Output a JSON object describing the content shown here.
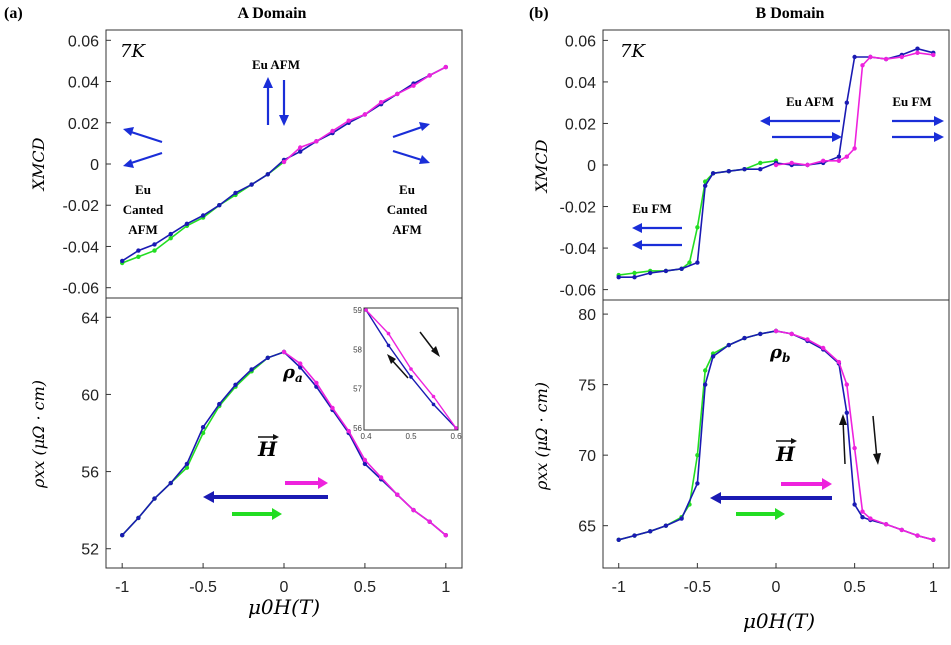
{
  "chart_data": [
    {
      "panel_label": "(a)",
      "title": "A Domain",
      "type": "line",
      "subplots": [
        {
          "id": "xmcd",
          "ylabel": "XMCD",
          "ylim": [
            -0.065,
            0.065
          ],
          "yticks": [
            "0.06",
            "0.04",
            "0.02",
            "0",
            "-0.02",
            "-0.04",
            "-0.06"
          ],
          "ytick_values": [
            0.06,
            0.04,
            0.02,
            0,
            -0.02,
            -0.04,
            -0.06
          ],
          "temperature": "7K",
          "series": [
            {
              "color": "#22dd22",
              "x": [
                -1.0,
                -0.9,
                -0.8,
                -0.7,
                -0.6,
                -0.5,
                -0.4,
                -0.3,
                -0.2,
                -0.1,
                0.0
              ],
              "values": [
                -0.048,
                -0.045,
                -0.042,
                -0.036,
                -0.03,
                -0.026,
                -0.02,
                -0.015,
                -0.01,
                -0.005,
                0.001
              ]
            },
            {
              "color": "#1a1ab3",
              "x": [
                -1.0,
                -0.9,
                -0.8,
                -0.7,
                -0.6,
                -0.5,
                -0.4,
                -0.3,
                -0.2,
                -0.1,
                0.0,
                0.1,
                0.2,
                0.3,
                0.4,
                0.5,
                0.6,
                0.7,
                0.8,
                0.9,
                1.0
              ],
              "values": [
                -0.047,
                -0.042,
                -0.039,
                -0.034,
                -0.029,
                -0.025,
                -0.02,
                -0.014,
                -0.01,
                -0.005,
                0.002,
                0.006,
                0.011,
                0.015,
                0.02,
                0.024,
                0.029,
                0.034,
                0.039,
                0.043,
                0.047
              ]
            },
            {
              "color": "#ee22dd",
              "x": [
                0.0,
                0.1,
                0.2,
                0.3,
                0.4,
                0.5,
                0.6,
                0.7,
                0.8,
                0.9,
                1.0
              ],
              "values": [
                0.001,
                0.008,
                0.011,
                0.016,
                0.021,
                0.024,
                0.03,
                0.034,
                0.038,
                0.043,
                0.047
              ]
            }
          ],
          "annotations": [
            "Eu AFM",
            "Eu Canted AFM",
            "Eu Canted AFM"
          ]
        },
        {
          "id": "rho",
          "ylabel": "ρxx (μΩ · cm)",
          "ylim": [
            51,
            65
          ],
          "yticks": [
            "64",
            "60",
            "56",
            "52"
          ],
          "ytick_values": [
            64,
            60,
            56,
            52
          ],
          "curve_label": "ρa",
          "field_label": "H",
          "series": [
            {
              "color": "#22dd22",
              "x": [
                -1.0,
                -0.9,
                -0.8,
                -0.7,
                -0.6,
                -0.5,
                -0.4,
                -0.3,
                -0.2,
                -0.1,
                0.0
              ],
              "values": [
                52.7,
                53.6,
                54.6,
                55.4,
                56.2,
                58.0,
                59.4,
                60.4,
                61.2,
                61.9,
                62.2
              ]
            },
            {
              "color": "#1a1ab3",
              "x": [
                -1.0,
                -0.9,
                -0.8,
                -0.7,
                -0.6,
                -0.5,
                -0.4,
                -0.3,
                -0.2,
                -0.1,
                0.0,
                0.1,
                0.2,
                0.3,
                0.4,
                0.5,
                0.6,
                0.7,
                0.8,
                0.9,
                1.0
              ],
              "values": [
                52.7,
                53.6,
                54.6,
                55.4,
                56.4,
                58.3,
                59.5,
                60.5,
                61.3,
                61.9,
                62.2,
                61.4,
                60.4,
                59.2,
                58.0,
                56.4,
                55.6,
                54.8,
                54.0,
                53.4,
                52.7
              ]
            },
            {
              "color": "#ee22dd",
              "x": [
                0.0,
                0.1,
                0.2,
                0.3,
                0.4,
                0.5,
                0.6,
                0.7,
                0.8,
                0.9,
                1.0
              ],
              "values": [
                62.2,
                61.6,
                60.6,
                59.3,
                58.1,
                56.6,
                55.7,
                54.8,
                54.0,
                53.4,
                52.7
              ]
            }
          ],
          "inset": {
            "xlim": [
              0.4,
              0.6
            ],
            "ylim": [
              56,
              59
            ],
            "xticks": [
              "0.4",
              "0.5",
              "0.6"
            ],
            "xtick_values": [
              0.4,
              0.5,
              0.6
            ],
            "yticks": [
              "59",
              "58",
              "57",
              "56"
            ],
            "ytick_values": [
              59,
              58,
              57,
              56
            ],
            "series": [
              {
                "color": "#1a1ab3",
                "x": [
                  0.4,
                  0.45,
                  0.5,
                  0.55,
                  0.6
                ],
                "values": [
                  59.0,
                  58.1,
                  57.3,
                  56.6,
                  56.0
                ]
              },
              {
                "color": "#ee22dd",
                "x": [
                  0.4,
                  0.45,
                  0.5,
                  0.55,
                  0.6
                ],
                "values": [
                  59.0,
                  58.4,
                  57.5,
                  56.8,
                  56.0
                ]
              }
            ]
          }
        }
      ],
      "xlabel": "μ0H(T)",
      "xlim": [
        -1.1,
        1.1
      ],
      "xticks": [
        "-1",
        "-0.5",
        "0",
        "0.5",
        "1"
      ],
      "xtick_values": [
        -1,
        -0.5,
        0,
        0.5,
        1
      ]
    },
    {
      "panel_label": "(b)",
      "title": "B Domain",
      "type": "line",
      "subplots": [
        {
          "id": "xmcd",
          "ylabel": "XMCD",
          "ylim": [
            -0.065,
            0.065
          ],
          "yticks": [
            "0.06",
            "0.04",
            "0.02",
            "0",
            "-0.02",
            "-0.04",
            "-0.06"
          ],
          "ytick_values": [
            0.06,
            0.04,
            0.02,
            0,
            -0.02,
            -0.04,
            -0.06
          ],
          "temperature": "7K",
          "series": [
            {
              "color": "#22dd22",
              "x": [
                -1.0,
                -0.9,
                -0.8,
                -0.7,
                -0.6,
                -0.55,
                -0.5,
                -0.45,
                -0.4,
                -0.3,
                -0.2,
                -0.1,
                0.0
              ],
              "values": [
                -0.053,
                -0.052,
                -0.051,
                -0.051,
                -0.05,
                -0.047,
                -0.03,
                -0.008,
                -0.004,
                -0.003,
                -0.002,
                0.001,
                0.002
              ]
            },
            {
              "color": "#1a1ab3",
              "x": [
                -1.0,
                -0.9,
                -0.8,
                -0.7,
                -0.6,
                -0.5,
                -0.45,
                -0.4,
                -0.3,
                -0.2,
                -0.1,
                0.0,
                0.1,
                0.2,
                0.3,
                0.4,
                0.45,
                0.5,
                0.6,
                0.7,
                0.8,
                0.9,
                1.0
              ],
              "values": [
                -0.054,
                -0.054,
                -0.052,
                -0.051,
                -0.05,
                -0.047,
                -0.01,
                -0.004,
                -0.003,
                -0.002,
                -0.002,
                0.001,
                0.0,
                0.0,
                0.001,
                0.004,
                0.03,
                0.052,
                0.052,
                0.051,
                0.053,
                0.056,
                0.054
              ]
            },
            {
              "color": "#ee22dd",
              "x": [
                0.0,
                0.1,
                0.2,
                0.3,
                0.4,
                0.45,
                0.5,
                0.55,
                0.6,
                0.7,
                0.8,
                0.9,
                1.0
              ],
              "values": [
                0.0,
                0.001,
                0.0,
                0.002,
                0.002,
                0.004,
                0.008,
                0.048,
                0.052,
                0.051,
                0.052,
                0.054,
                0.053
              ]
            }
          ],
          "annotations": [
            "Eu AFM",
            "Eu FM",
            "Eu FM"
          ]
        },
        {
          "id": "rho",
          "ylabel": "ρxx (μΩ · cm)",
          "ylim": [
            62,
            81
          ],
          "yticks": [
            "80",
            "75",
            "70",
            "65"
          ],
          "ytick_values": [
            80,
            75,
            70,
            65
          ],
          "curve_label": "ρb",
          "field_label": "H",
          "series": [
            {
              "color": "#22dd22",
              "x": [
                -1.0,
                -0.9,
                -0.8,
                -0.7,
                -0.6,
                -0.55,
                -0.5,
                -0.45,
                -0.4,
                -0.3,
                -0.2,
                -0.1,
                0.0
              ],
              "values": [
                64.0,
                64.3,
                64.6,
                65.0,
                65.6,
                66.5,
                70.0,
                76.0,
                77.2,
                77.8,
                78.3,
                78.6,
                78.8
              ]
            },
            {
              "color": "#1a1ab3",
              "x": [
                -1.0,
                -0.9,
                -0.8,
                -0.7,
                -0.6,
                -0.5,
                -0.45,
                -0.4,
                -0.3,
                -0.2,
                -0.1,
                0.0,
                0.1,
                0.2,
                0.3,
                0.4,
                0.45,
                0.5,
                0.55,
                0.6,
                0.7,
                0.8,
                0.9,
                1.0
              ],
              "values": [
                64.0,
                64.3,
                64.6,
                65.0,
                65.5,
                68.0,
                75.0,
                77.0,
                77.8,
                78.3,
                78.6,
                78.8,
                78.6,
                78.1,
                77.5,
                76.5,
                73.0,
                66.5,
                65.6,
                65.4,
                65.1,
                64.7,
                64.3,
                64.0
              ]
            },
            {
              "color": "#ee22dd",
              "x": [
                0.0,
                0.1,
                0.2,
                0.3,
                0.4,
                0.45,
                0.5,
                0.55,
                0.6,
                0.7,
                0.8,
                0.9,
                1.0
              ],
              "values": [
                78.8,
                78.6,
                78.2,
                77.6,
                76.6,
                75.0,
                70.5,
                66.0,
                65.5,
                65.1,
                64.7,
                64.3,
                64.0
              ]
            }
          ]
        }
      ],
      "xlabel": "μ0H(T)",
      "xlim": [
        -1.1,
        1.1
      ],
      "xticks": [
        "-1",
        "-0.5",
        "0",
        "0.5",
        "1"
      ],
      "xtick_values": [
        -1,
        -0.5,
        0,
        0.5,
        1
      ]
    }
  ],
  "colors": {
    "green": "#22dd22",
    "navy": "#1a1ab3",
    "magenta": "#ee22dd",
    "arrow_blue": "#1a2ed8",
    "black": "#111111"
  },
  "text": {
    "a_eu_afm": "Eu AFM",
    "a_canted_left": [
      "Eu",
      "Canted",
      "AFM"
    ],
    "a_canted_right": [
      "Eu",
      "Canted",
      "AFM"
    ],
    "b_eu_afm": "Eu AFM",
    "b_eu_fm_left": "Eu FM",
    "b_eu_fm_right": "Eu FM"
  }
}
